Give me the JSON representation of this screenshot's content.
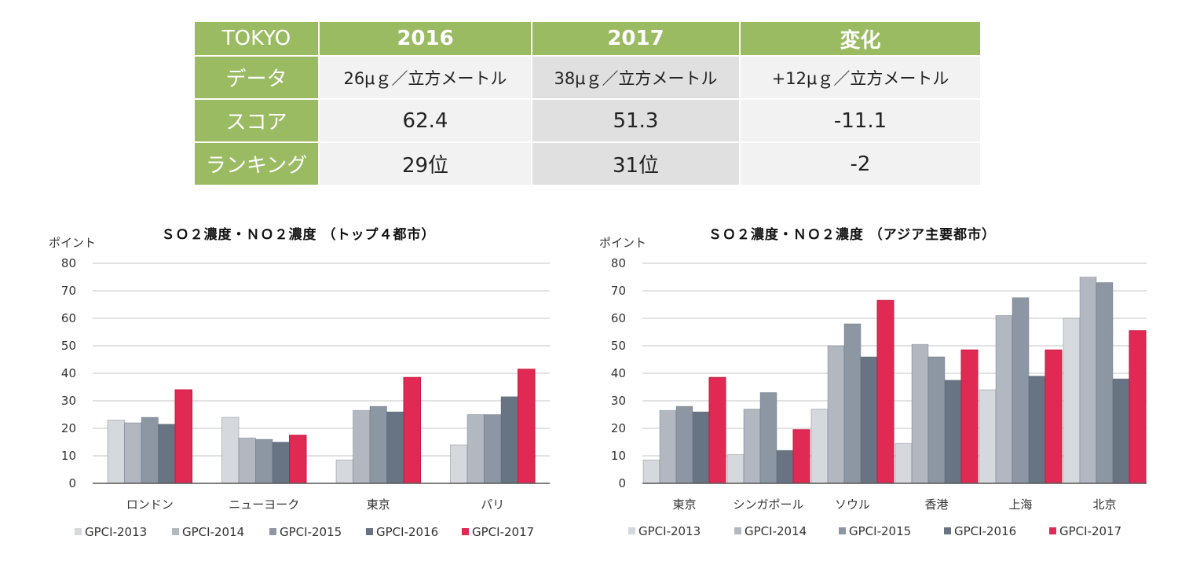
{
  "table": {
    "header": [
      "TOKYO",
      "2016",
      "2017",
      "変化"
    ],
    "rows": [
      {
        "label": "データ",
        "v2016": "26μｇ／立方メートル",
        "v2017": "38μｇ／立方メートル",
        "change": "+12μｇ／立方メートル"
      },
      {
        "label": "スコア",
        "v2016": "62.4",
        "v2017": "51.3",
        "change": "-11.1"
      },
      {
        "label": "ランキング",
        "v2016": "29位",
        "v2017": "31位",
        "change": "-2"
      }
    ]
  },
  "colors": {
    "header_green": "#9bbb63",
    "series": [
      "#d5d8dd",
      "#b2b7c0",
      "#8d96a3",
      "#687384",
      "#e02a53"
    ]
  },
  "chart_data": [
    {
      "type": "bar",
      "title": "ＳＯ２濃度・ＮＯ２濃度 （トップ４都市）",
      "ylabel": "ポイント",
      "xlabel": "",
      "ylim": [
        0,
        80
      ],
      "yticks": [
        "0",
        "10",
        "20",
        "30",
        "40",
        "50",
        "60",
        "70",
        "80"
      ],
      "grid": true,
      "legend": "bottom",
      "categories": [
        "ロンドン",
        "ニューヨーク",
        "東京",
        "パリ"
      ],
      "series": [
        {
          "name": "GPCI-2013",
          "values": [
            23,
            24,
            8.5,
            14
          ]
        },
        {
          "name": "GPCI-2014",
          "values": [
            22,
            16.5,
            26.5,
            25
          ]
        },
        {
          "name": "GPCI-2015",
          "values": [
            24,
            16,
            28,
            25
          ]
        },
        {
          "name": "GPCI-2016",
          "values": [
            21.5,
            15,
            26,
            31.5
          ]
        },
        {
          "name": "GPCI-2017",
          "values": [
            34,
            17.5,
            38.5,
            41.5
          ]
        }
      ]
    },
    {
      "type": "bar",
      "title": "ＳＯ２濃度・ＮＯ２濃度 （アジア主要都市）",
      "ylabel": "ポイント",
      "xlabel": "",
      "ylim": [
        0,
        80
      ],
      "yticks": [
        "0",
        "10",
        "20",
        "30",
        "40",
        "50",
        "60",
        "70",
        "80"
      ],
      "grid": true,
      "legend": "bottom",
      "categories": [
        "東京",
        "シンガポール",
        "ソウル",
        "香港",
        "上海",
        "北京"
      ],
      "series": [
        {
          "name": "GPCI-2013",
          "values": [
            8.5,
            10.5,
            27,
            14.5,
            34,
            60
          ]
        },
        {
          "name": "GPCI-2014",
          "values": [
            26.5,
            27,
            50,
            50.5,
            61,
            75
          ]
        },
        {
          "name": "GPCI-2015",
          "values": [
            28,
            33,
            58,
            46,
            67.5,
            73
          ]
        },
        {
          "name": "GPCI-2016",
          "values": [
            26,
            12,
            46,
            37.5,
            39,
            38
          ]
        },
        {
          "name": "GPCI-2017",
          "values": [
            38.5,
            19.5,
            66.5,
            48.5,
            48.5,
            55.5
          ]
        }
      ]
    }
  ]
}
